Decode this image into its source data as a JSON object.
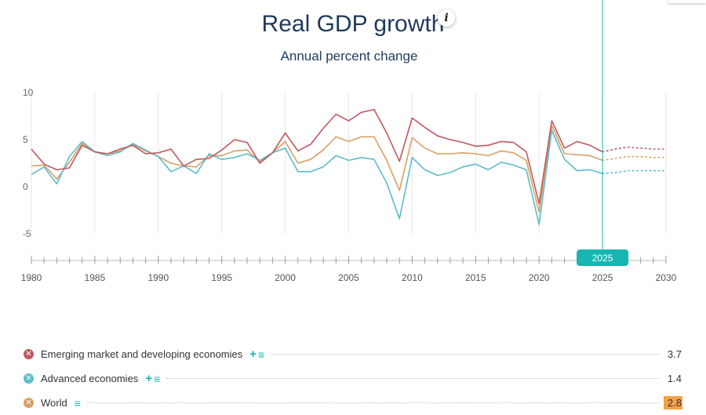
{
  "header": {
    "title": "Real GDP growth",
    "subtitle": "Annual percent change",
    "info_icon": "info-icon"
  },
  "colors": {
    "emerging": "#c0585d",
    "advanced": "#5bbcca",
    "world": "#d9a065",
    "accent": "#17b6b0",
    "highlight": "#f5a04a"
  },
  "chart_data": {
    "type": "line",
    "title": "Real GDP growth",
    "subtitle": "Annual percent change",
    "xlim": [
      1980,
      2030
    ],
    "ylim": [
      -5,
      10
    ],
    "yticks": [
      "10",
      "5",
      "0",
      "-5"
    ],
    "xticks": [
      "1980",
      "1985",
      "1990",
      "1995",
      "2000",
      "2005",
      "2010",
      "2015",
      "2020",
      "2025",
      "2030"
    ],
    "selected_year": "2025",
    "forecast_from": 2025,
    "x": [
      1980,
      1981,
      1982,
      1983,
      1984,
      1985,
      1986,
      1987,
      1988,
      1989,
      1990,
      1991,
      1992,
      1993,
      1994,
      1995,
      1996,
      1997,
      1998,
      1999,
      2000,
      2001,
      2002,
      2003,
      2004,
      2005,
      2006,
      2007,
      2008,
      2009,
      2010,
      2011,
      2012,
      2013,
      2014,
      2015,
      2016,
      2017,
      2018,
      2019,
      2020,
      2021,
      2022,
      2023,
      2024,
      2025,
      2026,
      2027,
      2028,
      2029,
      2030
    ],
    "series": [
      {
        "name": "Emerging market and developing economies",
        "key": "emerging",
        "latest": "3.7",
        "values": [
          4.0,
          2.4,
          1.8,
          2.0,
          4.4,
          3.7,
          3.5,
          4.0,
          4.4,
          3.5,
          3.6,
          4.0,
          2.2,
          2.9,
          3.0,
          3.9,
          5.0,
          4.7,
          2.5,
          3.6,
          5.7,
          3.8,
          4.5,
          6.2,
          7.7,
          7.0,
          7.9,
          8.2,
          5.7,
          2.7,
          7.3,
          6.3,
          5.4,
          5.0,
          4.7,
          4.3,
          4.4,
          4.8,
          4.7,
          3.7,
          -1.8,
          7.0,
          4.1,
          4.8,
          4.4,
          3.7,
          4.0,
          4.2,
          4.1,
          4.0,
          4.0
        ]
      },
      {
        "name": "Advanced economies",
        "key": "advanced",
        "latest": "1.4",
        "values": [
          1.3,
          2.1,
          0.3,
          3.2,
          4.8,
          3.7,
          3.3,
          3.7,
          4.6,
          3.9,
          3.2,
          1.6,
          2.2,
          1.4,
          3.5,
          2.9,
          3.1,
          3.5,
          2.8,
          3.6,
          4.1,
          1.6,
          1.6,
          2.1,
          3.3,
          2.8,
          3.1,
          2.9,
          0.4,
          -3.4,
          3.1,
          1.8,
          1.2,
          1.5,
          2.1,
          2.4,
          1.8,
          2.6,
          2.3,
          1.8,
          -4.0,
          6.0,
          2.9,
          1.7,
          1.8,
          1.4,
          1.5,
          1.7,
          1.7,
          1.7,
          1.7
        ]
      },
      {
        "name": "World",
        "key": "world",
        "latest": "2.8",
        "values": [
          2.2,
          2.3,
          0.8,
          2.6,
          4.6,
          3.7,
          3.5,
          3.8,
          4.5,
          3.8,
          3.2,
          2.5,
          2.2,
          2.1,
          3.3,
          3.3,
          3.8,
          3.9,
          2.6,
          3.6,
          4.8,
          2.5,
          2.9,
          3.9,
          5.3,
          4.8,
          5.3,
          5.3,
          2.8,
          -0.4,
          5.2,
          4.1,
          3.5,
          3.5,
          3.6,
          3.5,
          3.3,
          3.8,
          3.6,
          2.8,
          -2.7,
          6.5,
          3.5,
          3.4,
          3.3,
          2.8,
          3.0,
          3.2,
          3.2,
          3.1,
          3.1
        ]
      }
    ]
  },
  "legend": [
    {
      "label": "Emerging market and developing economies",
      "value": "3.7",
      "plus": "+",
      "menu": "≡",
      "icon": "✕"
    },
    {
      "label": "Advanced economies",
      "value": "1.4",
      "plus": "+",
      "menu": "≡",
      "icon": "✕"
    },
    {
      "label": "World",
      "value": "2.8",
      "menu": "≡",
      "icon": "✕"
    }
  ]
}
